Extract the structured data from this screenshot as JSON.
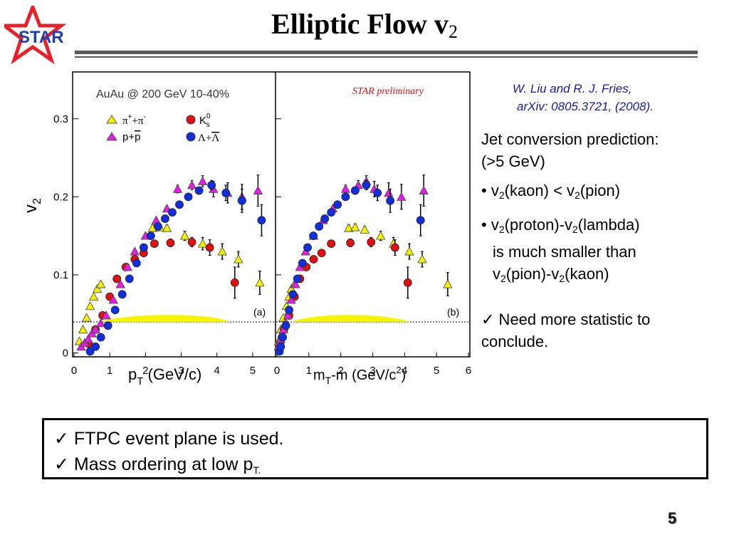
{
  "logo": {
    "text": "STAR",
    "colors": {
      "star": "#e8202a",
      "text": "#1f3fb0"
    }
  },
  "title": {
    "main": "Elliptic Flow v",
    "sub": "2"
  },
  "figure": {
    "panel_text": "AuAu @ 200 GeV 10-40%",
    "preliminary": "STAR preliminary",
    "ylabel": "v",
    "ylabel_sub": "2",
    "left_xlabel": "p",
    "left_xlabel_sub": "T",
    "left_xlabel_rest": " (GeV/c)",
    "right_xlabel": "m",
    "right_xlabel_sub": "T",
    "right_xlabel_rest": "-m (GeV/c",
    "right_xlabel_sup": "2",
    "right_xlabel_end": ")",
    "panel_a": "(a)",
    "panel_b": "(b)",
    "y_ticks": [
      "0",
      "0.1",
      "0.2",
      "0.3"
    ],
    "left_x_ticks": [
      "0",
      "1",
      "2",
      "3",
      "4",
      "5"
    ],
    "right_x_ticks": [
      "0",
      "1",
      "2",
      "3",
      "4",
      "5",
      "6"
    ],
    "legend": {
      "pion": {
        "a": "π",
        "sup1": "+",
        "b": "+π",
        "sup2": "-"
      },
      "kaon": {
        "a": "K",
        "sup": "0",
        "sub": "s"
      },
      "proton": {
        "a": "p+",
        "b": "p"
      },
      "lambda": {
        "a": "Λ+",
        "b": "Λ"
      }
    },
    "colors": {
      "pion": "#f3f300",
      "kaon": "#e01010",
      "proton": "#e020e0",
      "lambda": "#1030e0",
      "band": "#f5f500"
    }
  },
  "chart_data": [
    {
      "type": "scatter",
      "title": "AuAu @ 200 GeV 10-40%",
      "xlabel": "pT (GeV/c)",
      "ylabel": "v2",
      "xlim": [
        0,
        5.6
      ],
      "ylim": [
        -0.005,
        0.36
      ],
      "series": [
        {
          "name": "π++π-",
          "marker": "triangle-up",
          "x": [
            0.15,
            0.25,
            0.35,
            0.45,
            0.55,
            0.65,
            0.75,
            2.2,
            2.4,
            2.6,
            3.1,
            3.6,
            4.15,
            4.6,
            5.2
          ],
          "y": [
            0.015,
            0.03,
            0.045,
            0.06,
            0.072,
            0.082,
            0.088,
            0.16,
            0.161,
            0.16,
            0.15,
            0.14,
            0.13,
            0.12,
            0.09
          ],
          "err": [
            0,
            0,
            0,
            0,
            0,
            0,
            0,
            0.004,
            0.004,
            0.004,
            0.006,
            0.008,
            0.01,
            0.01,
            0.015
          ]
        },
        {
          "name": "K0s",
          "marker": "circle",
          "x": [
            0.4,
            0.6,
            0.8,
            1.0,
            1.2,
            1.45,
            1.7,
            1.95,
            2.25,
            2.7,
            3.3,
            3.8,
            4.5
          ],
          "y": [
            0.012,
            0.03,
            0.048,
            0.072,
            0.095,
            0.11,
            0.12,
            0.128,
            0.14,
            0.141,
            0.142,
            0.135,
            0.09
          ],
          "err": [
            0,
            0,
            0,
            0,
            0,
            0,
            0,
            0,
            0,
            0.005,
            0.006,
            0.01,
            0.02
          ]
        },
        {
          "name": "p+p̄",
          "marker": "triangle-up",
          "x": [
            0.2,
            0.3,
            0.4,
            0.5,
            0.6,
            0.75,
            0.9,
            1.1,
            1.3,
            1.5,
            1.7,
            2.0,
            2.3,
            2.6,
            2.9,
            3.3,
            3.6,
            3.9,
            4.3,
            4.7,
            5.15
          ],
          "y": [
            0.008,
            0.013,
            0.018,
            0.025,
            0.03,
            0.038,
            0.048,
            0.068,
            0.088,
            0.11,
            0.13,
            0.15,
            0.17,
            0.185,
            0.21,
            0.215,
            0.22,
            0.21,
            0.205,
            0.2,
            0.208
          ],
          "err": [
            0,
            0,
            0,
            0,
            0,
            0,
            0,
            0,
            0,
            0,
            0,
            0,
            0,
            0,
            0.005,
            0.006,
            0.007,
            0.01,
            0.013,
            0.016,
            0.02
          ]
        },
        {
          "name": "Λ+Λ̄",
          "marker": "circle",
          "x": [
            0.45,
            0.6,
            0.75,
            0.95,
            1.15,
            1.35,
            1.55,
            1.75,
            1.95,
            2.15,
            2.35,
            2.55,
            2.75,
            2.95,
            3.2,
            3.5,
            3.85,
            4.25,
            4.7,
            5.25
          ],
          "y": [
            0.002,
            0.008,
            0.02,
            0.035,
            0.055,
            0.075,
            0.095,
            0.115,
            0.135,
            0.15,
            0.162,
            0.172,
            0.18,
            0.19,
            0.2,
            0.208,
            0.215,
            0.205,
            0.195,
            0.17
          ],
          "err": [
            0,
            0,
            0,
            0,
            0,
            0,
            0,
            0,
            0,
            0,
            0,
            0,
            0,
            0,
            0,
            0.004,
            0.006,
            0.01,
            0.015,
            0.02
          ]
        }
      ]
    },
    {
      "type": "scatter",
      "xlabel": "mT-m (GeV/c2)",
      "ylabel": "v2",
      "xlim": [
        0,
        6
      ],
      "ylim": [
        -0.005,
        0.36
      ],
      "series": [
        {
          "name": "π++π-",
          "marker": "triangle-up",
          "x": [
            0.05,
            0.12,
            0.2,
            0.3,
            0.38,
            0.45,
            0.55,
            2.25,
            2.45,
            2.75,
            3.25,
            3.65,
            4.15,
            4.55,
            5.35
          ],
          "y": [
            0.015,
            0.03,
            0.045,
            0.06,
            0.072,
            0.082,
            0.088,
            0.16,
            0.161,
            0.158,
            0.15,
            0.14,
            0.13,
            0.12,
            0.088
          ],
          "err": [
            0,
            0,
            0,
            0,
            0,
            0,
            0,
            0.004,
            0.004,
            0.004,
            0.006,
            0.008,
            0.01,
            0.01,
            0.015
          ]
        },
        {
          "name": "K0s",
          "marker": "circle",
          "x": [
            0.1,
            0.22,
            0.38,
            0.55,
            0.72,
            0.92,
            1.15,
            1.4,
            1.7,
            2.3,
            2.95,
            3.7,
            4.1
          ],
          "y": [
            0.012,
            0.03,
            0.048,
            0.072,
            0.095,
            0.11,
            0.12,
            0.128,
            0.14,
            0.141,
            0.142,
            0.135,
            0.09
          ],
          "err": [
            0,
            0,
            0,
            0,
            0,
            0,
            0,
            0,
            0,
            0.005,
            0.006,
            0.01,
            0.02
          ]
        },
        {
          "name": "p+p̄",
          "marker": "triangle-up",
          "x": [
            0.05,
            0.08,
            0.12,
            0.16,
            0.2,
            0.26,
            0.34,
            0.45,
            0.58,
            0.72,
            0.9,
            1.15,
            1.45,
            1.75,
            2.15,
            2.55,
            2.8,
            3.05,
            3.5,
            3.9,
            4.6
          ],
          "y": [
            0.008,
            0.013,
            0.018,
            0.025,
            0.03,
            0.038,
            0.048,
            0.068,
            0.088,
            0.11,
            0.13,
            0.15,
            0.17,
            0.185,
            0.21,
            0.215,
            0.22,
            0.21,
            0.205,
            0.2,
            0.208
          ],
          "err": [
            0,
            0,
            0,
            0,
            0,
            0,
            0,
            0,
            0,
            0,
            0,
            0,
            0,
            0,
            0.005,
            0.006,
            0.007,
            0.01,
            0.013,
            0.016,
            0.02
          ]
        },
        {
          "name": "Λ+Λ̄",
          "marker": "circle",
          "x": [
            0.08,
            0.12,
            0.18,
            0.28,
            0.38,
            0.5,
            0.64,
            0.8,
            0.96,
            1.14,
            1.32,
            1.5,
            1.7,
            1.9,
            2.15,
            2.45,
            2.8,
            3.15,
            3.55,
            4.5
          ],
          "y": [
            0.002,
            0.008,
            0.02,
            0.035,
            0.055,
            0.075,
            0.095,
            0.115,
            0.135,
            0.15,
            0.162,
            0.172,
            0.18,
            0.19,
            0.2,
            0.208,
            0.215,
            0.205,
            0.195,
            0.17
          ],
          "err": [
            0,
            0,
            0,
            0,
            0,
            0,
            0,
            0,
            0,
            0,
            0,
            0,
            0,
            0,
            0,
            0.004,
            0.006,
            0.01,
            0.015,
            0.02
          ]
        }
      ]
    }
  ],
  "citation": {
    "line1": "W. Liu and R. J. Fries,",
    "line2": "arXiv: 0805.3721, (2008)."
  },
  "notes": {
    "intro1": "Jet conversion prediction:",
    "intro2": "(>5 GeV)",
    "b1_bullet": "• ",
    "b1_a": "v",
    "b1_sub1": "2",
    "b1_b": "(kaon) < v",
    "b1_sub2": "2",
    "b1_c": "(pion)",
    "b2_bullet": "• ",
    "b2_a": "v",
    "b2_sub1": "2",
    "b2_b": "(proton)-v",
    "b2_sub2": "2",
    "b2_c": "(lambda)",
    "b2_line2": "is much smaller than",
    "b2_l3a": "v",
    "b2_l3sub1": "2",
    "b2_l3b": "(pion)-v",
    "b2_l3sub2": "2",
    "b2_l3c": "(kaon)",
    "check": "✓",
    "c1": " Need more statistic to",
    "c2": "conclude."
  },
  "box": {
    "check": "✓",
    "line1": " FTPC event plane is used.",
    "line2": " Mass ordering at low p",
    "line2_sub": "T."
  },
  "page_number": "5"
}
